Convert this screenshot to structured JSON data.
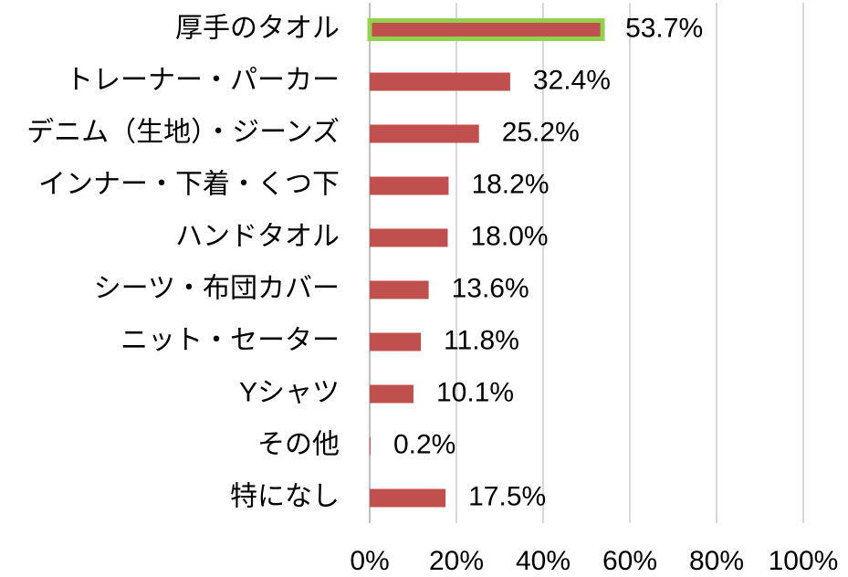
{
  "chart_data": {
    "type": "bar",
    "orientation": "horizontal",
    "categories": [
      "厚手のタオル",
      "トレーナー・パーカー",
      "デニム（生地）・ジーンズ",
      "インナー・下着・くつ下",
      "ハンドタオル",
      "シーツ・布団カバー",
      "ニット・セーター",
      "Yシャツ",
      "その他",
      "特になし"
    ],
    "values": [
      53.7,
      32.4,
      25.2,
      18.2,
      18.0,
      13.6,
      11.8,
      10.1,
      0.2,
      17.5
    ],
    "value_labels": [
      "53.7%",
      "32.4%",
      "25.2%",
      "18.2%",
      "18.0%",
      "13.6%",
      "11.8%",
      "10.1%",
      "0.2%",
      "17.5%"
    ],
    "color": "#c0504d",
    "highlight_index": 0,
    "highlight_color": "#92d050",
    "xlim": [
      0,
      100
    ],
    "xticks": [
      {
        "value": 0,
        "label": "0%"
      },
      {
        "value": 20,
        "label": "20%"
      },
      {
        "value": 40,
        "label": "40%"
      },
      {
        "value": 60,
        "label": "60%"
      },
      {
        "value": 80,
        "label": "80%"
      },
      {
        "value": 100,
        "label": "100%"
      }
    ],
    "grid": true
  }
}
